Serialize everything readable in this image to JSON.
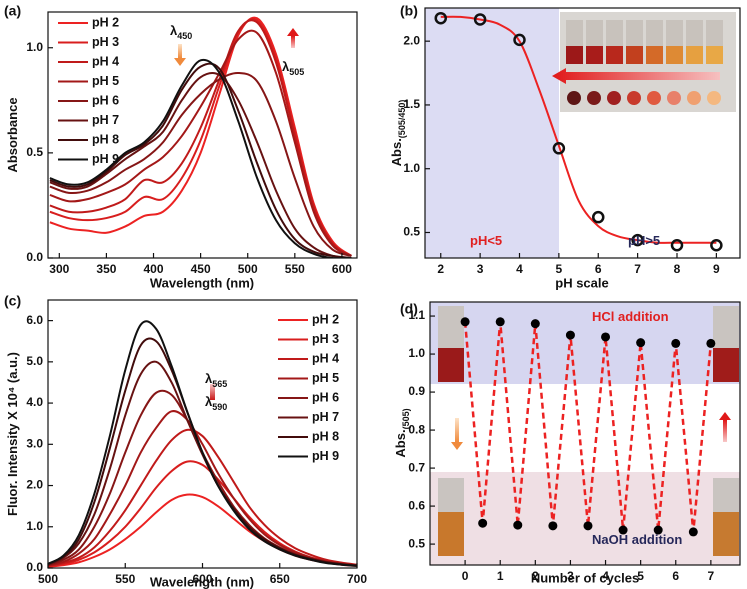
{
  "chart_data": [
    {
      "type": "line",
      "label": "(a)",
      "xlabel": "Wavelength (nm)",
      "ylabel": "Absorbance",
      "xlim": [
        288,
        616
      ],
      "ylim": [
        0,
        1.17
      ],
      "xticks": [
        300,
        350,
        400,
        450,
        500,
        550,
        600
      ],
      "yticks": [
        {
          "value": 0,
          "label": "0.0"
        },
        0.5,
        {
          "value": 1,
          "label": "1.0"
        }
      ],
      "annotations": [
        {
          "text": "λ",
          "sub": "450"
        },
        {
          "text": "λ",
          "sub": "505"
        }
      ],
      "legend": "upper left",
      "x": [
        290,
        310,
        330,
        350,
        370,
        390,
        410,
        430,
        450,
        470,
        490,
        510,
        530,
        550,
        570,
        590,
        610
      ],
      "series": [
        {
          "name": "pH 2",
          "color": "#ec2222",
          "values": [
            0.17,
            0.14,
            0.13,
            0.12,
            0.15,
            0.2,
            0.22,
            0.32,
            0.5,
            0.78,
            1.06,
            1.14,
            0.97,
            0.62,
            0.26,
            0.08,
            0.01
          ]
        },
        {
          "name": "pH 3",
          "color": "#d81e1e",
          "values": [
            0.22,
            0.19,
            0.18,
            0.19,
            0.22,
            0.29,
            0.28,
            0.38,
            0.56,
            0.82,
            1.07,
            1.13,
            0.95,
            0.6,
            0.25,
            0.07,
            0.01
          ]
        },
        {
          "name": "pH 4",
          "color": "#c01a1a",
          "values": [
            0.25,
            0.22,
            0.22,
            0.24,
            0.28,
            0.37,
            0.36,
            0.45,
            0.62,
            0.85,
            1.08,
            1.12,
            0.93,
            0.58,
            0.24,
            0.07,
            0.01
          ]
        },
        {
          "name": "pH 5",
          "color": "#a31818",
          "values": [
            0.3,
            0.27,
            0.28,
            0.31,
            0.35,
            0.42,
            0.48,
            0.58,
            0.72,
            0.88,
            1.04,
            1.07,
            0.88,
            0.55,
            0.22,
            0.06,
            0.01
          ]
        },
        {
          "name": "pH 6",
          "color": "#861616",
          "values": [
            0.34,
            0.31,
            0.32,
            0.36,
            0.42,
            0.47,
            0.55,
            0.68,
            0.78,
            0.85,
            0.88,
            0.84,
            0.65,
            0.38,
            0.15,
            0.04,
            0.01
          ]
        },
        {
          "name": "pH 7",
          "color": "#671212",
          "values": [
            0.36,
            0.33,
            0.34,
            0.4,
            0.47,
            0.53,
            0.6,
            0.75,
            0.86,
            0.87,
            0.75,
            0.55,
            0.32,
            0.14,
            0.05,
            0.01,
            0
          ]
        },
        {
          "name": "pH 8",
          "color": "#420c0c",
          "values": [
            0.37,
            0.34,
            0.35,
            0.41,
            0.49,
            0.54,
            0.63,
            0.8,
            0.91,
            0.9,
            0.7,
            0.45,
            0.23,
            0.09,
            0.03,
            0.01,
            0
          ]
        },
        {
          "name": "pH 9",
          "color": "#111111",
          "values": [
            0.38,
            0.35,
            0.36,
            0.42,
            0.5,
            0.55,
            0.65,
            0.82,
            0.94,
            0.88,
            0.65,
            0.38,
            0.18,
            0.07,
            0.02,
            0,
            0
          ]
        }
      ]
    },
    {
      "type": "scatter",
      "label": "(b)",
      "xlabel": "pH scale",
      "ylabel": "Abs.",
      "ylabel_sub": "(505/450)",
      "xlim": [
        1.6,
        9.6
      ],
      "ylim": [
        0.3,
        2.26
      ],
      "xticks": [
        2,
        3,
        4,
        5,
        6,
        7,
        8,
        9
      ],
      "yticks": [
        0.5,
        {
          "value": 1,
          "label": "1.0"
        },
        1.5,
        {
          "value": 2,
          "label": "2.0"
        }
      ],
      "annotations": [
        {
          "text": "pH<5",
          "color": "#e02020"
        },
        {
          "text": "pH>5",
          "color": "#26285a"
        }
      ],
      "x": [
        2,
        3,
        4,
        5,
        6,
        7,
        8,
        9
      ],
      "values": [
        2.18,
        2.17,
        2.01,
        1.16,
        0.62,
        0.44,
        0.4,
        0.4
      ],
      "color": "#111111",
      "fit": {
        "color": "#ec2222",
        "x": [
          2,
          2.5,
          3,
          3.5,
          4,
          4.5,
          5,
          5.5,
          6,
          6.5,
          7,
          7.5,
          8,
          8.5,
          9
        ],
        "values": [
          2.19,
          2.19,
          2.17,
          2.13,
          2.0,
          1.62,
          1.18,
          0.75,
          0.55,
          0.47,
          0.44,
          0.42,
          0.42,
          0.42,
          0.42
        ]
      }
    },
    {
      "type": "line",
      "label": "(c)",
      "xlabel": "Wavelength (nm)",
      "ylabel": "Fluor. Intensity X 10⁴ (a.u.)",
      "xlim": [
        500,
        700
      ],
      "ylim": [
        0,
        6.5
      ],
      "xticks": [
        500,
        550,
        600,
        650,
        700
      ],
      "yticks": [
        {
          "value": 0,
          "label": "0.0"
        },
        {
          "value": 1,
          "label": "1.0"
        },
        {
          "value": 2,
          "label": "2.0"
        },
        {
          "value": 3,
          "label": "3.0"
        },
        {
          "value": 4,
          "label": "4.0"
        },
        {
          "value": 5,
          "label": "5.0"
        },
        {
          "value": 6,
          "label": "6.0"
        }
      ],
      "annotations": [
        {
          "text": "λ",
          "sub": "565"
        },
        {
          "text": "λ",
          "sub": "590"
        }
      ],
      "legend": "right",
      "x": [
        500,
        510,
        520,
        530,
        540,
        550,
        560,
        570,
        580,
        590,
        600,
        610,
        620,
        630,
        640,
        650,
        660,
        670,
        680,
        690,
        700
      ],
      "series": [
        {
          "name": "pH 2",
          "color": "#ec2222",
          "values": [
            0.03,
            0.07,
            0.14,
            0.27,
            0.45,
            0.7,
            1.0,
            1.35,
            1.65,
            1.78,
            1.72,
            1.5,
            1.2,
            0.9,
            0.65,
            0.45,
            0.3,
            0.2,
            0.13,
            0.08,
            0.05
          ]
        },
        {
          "name": "pH 3",
          "color": "#d81e1e",
          "values": [
            0.04,
            0.1,
            0.2,
            0.38,
            0.65,
            1.0,
            1.45,
            1.95,
            2.35,
            2.58,
            2.5,
            2.15,
            1.7,
            1.25,
            0.88,
            0.6,
            0.4,
            0.26,
            0.17,
            0.11,
            0.07
          ]
        },
        {
          "name": "pH 4",
          "color": "#c01a1a",
          "values": [
            0.05,
            0.12,
            0.25,
            0.5,
            0.9,
            1.4,
            2.0,
            2.6,
            3.1,
            3.35,
            3.2,
            2.7,
            2.1,
            1.5,
            1.05,
            0.72,
            0.48,
            0.32,
            0.2,
            0.13,
            0.08
          ]
        },
        {
          "name": "pH 5",
          "color": "#a31818",
          "values": [
            0.06,
            0.15,
            0.35,
            0.7,
            1.3,
            2.0,
            2.8,
            3.4,
            3.8,
            3.6,
            3.0,
            2.3,
            1.7,
            1.2,
            0.82,
            0.56,
            0.38,
            0.25,
            0.16,
            0.1,
            0.07
          ]
        },
        {
          "name": "pH 6",
          "color": "#861616",
          "values": [
            0.07,
            0.2,
            0.45,
            1.0,
            1.8,
            2.8,
            3.7,
            4.25,
            4.2,
            3.6,
            2.8,
            2.1,
            1.5,
            1.05,
            0.72,
            0.5,
            0.34,
            0.23,
            0.15,
            0.1,
            0.06
          ]
        },
        {
          "name": "pH 7",
          "color": "#671212",
          "values": [
            0.08,
            0.25,
            0.6,
            1.3,
            2.4,
            3.7,
            4.7,
            5.0,
            4.5,
            3.6,
            2.75,
            2.0,
            1.45,
            1.0,
            0.7,
            0.48,
            0.32,
            0.22,
            0.14,
            0.09,
            0.06
          ]
        },
        {
          "name": "pH 8",
          "color": "#420c0c",
          "values": [
            0.1,
            0.28,
            0.7,
            1.6,
            2.9,
            4.3,
            5.4,
            5.5,
            4.8,
            3.8,
            2.8,
            2.0,
            1.45,
            1.0,
            0.7,
            0.48,
            0.32,
            0.22,
            0.14,
            0.09,
            0.06
          ]
        },
        {
          "name": "pH 9",
          "color": "#111111",
          "values": [
            0.1,
            0.3,
            0.8,
            1.8,
            3.2,
            4.8,
            5.9,
            5.8,
            4.9,
            3.8,
            2.8,
            2.0,
            1.4,
            0.95,
            0.65,
            0.45,
            0.3,
            0.2,
            0.12,
            0.08,
            0.05
          ]
        }
      ]
    },
    {
      "type": "cycle",
      "label": "(d)",
      "xlabel": "Number of cycles",
      "ylabel": "Abs.",
      "ylabel_sub": "(505)",
      "xlim": [
        -1,
        7.83
      ],
      "ylim": [
        0.445,
        1.137
      ],
      "xticks": [
        0,
        1,
        2,
        3,
        4,
        5,
        6,
        7
      ],
      "yticks": [
        0.5,
        0.6,
        0.7,
        0.8,
        0.9,
        {
          "value": 1,
          "label": "1.0"
        },
        1.1
      ],
      "annotations": [
        {
          "text": "HCl addition",
          "color": "#e02020"
        },
        {
          "text": "NaOH addition",
          "color": "#26285a"
        }
      ],
      "x": [
        0,
        0.5,
        1,
        1.5,
        2,
        2.5,
        3,
        3.5,
        4,
        4.5,
        5,
        5.5,
        6,
        6.5,
        7
      ],
      "values": [
        1.085,
        0.555,
        1.085,
        0.55,
        1.08,
        0.548,
        1.05,
        0.548,
        1.045,
        0.537,
        1.03,
        0.537,
        1.028,
        0.532,
        1.028
      ],
      "color": "#ec2222",
      "marker_color": "#000000",
      "dashed": true
    }
  ]
}
